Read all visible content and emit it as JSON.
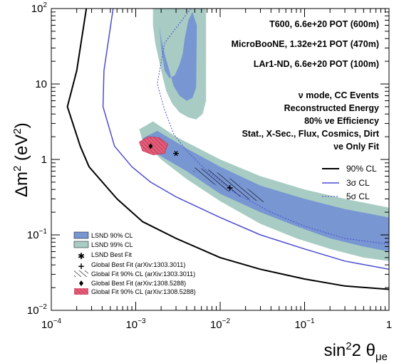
{
  "chart_data": {
    "type": "line",
    "xlabel": "sin²2 θμe",
    "ylabel": "Δm² (eV²)",
    "xscale": "log",
    "yscale": "log",
    "xlim": [
      0.0001,
      1
    ],
    "ylim": [
      0.01,
      100
    ],
    "x_ticks": [
      0.0001,
      0.001,
      0.01,
      0.1,
      1
    ],
    "y_ticks": [
      0.01,
      0.1,
      1,
      10,
      100
    ],
    "x_tick_labels": [
      {
        "base": "10",
        "exp": "−4"
      },
      {
        "base": "10",
        "exp": "−3"
      },
      {
        "base": "10",
        "exp": "−2"
      },
      {
        "base": "10",
        "exp": "−1"
      },
      {
        "base": "1",
        "exp": ""
      }
    ],
    "y_tick_labels": [
      {
        "base": "10",
        "exp": "−2"
      },
      {
        "base": "10",
        "exp": "−1"
      },
      {
        "base": "1",
        "exp": ""
      },
      {
        "base": "10",
        "exp": ""
      },
      {
        "base": "10",
        "exp": "2"
      }
    ],
    "info_lines": [
      "T600, 6.6e+20 POT (600m)",
      "MicroBooNE, 1.32e+21 POT (470m)",
      "LAr1-ND, 6.6e+20 POT (100m)"
    ],
    "mode_lines": [
      "ν mode, CC Events",
      "Reconstructed Energy",
      "80% νe Efficiency",
      "Stat., X-Sec., Flux, Cosmics, Dirt",
      "νe Only Fit"
    ],
    "series": [
      {
        "name": "90% CL",
        "color": "#000000",
        "style": "solid",
        "x": [
          0.00026,
          0.0002,
          0.000155,
          0.00022,
          0.00028,
          0.0006,
          0.0012,
          0.003,
          0.01,
          0.03,
          0.1,
          0.3,
          1.0
        ],
        "y": [
          100,
          15,
          5.0,
          1.5,
          0.8,
          0.3,
          0.15,
          0.09,
          0.05,
          0.035,
          0.026,
          0.021,
          0.019
        ]
      },
      {
        "name": "3σ CL",
        "color": "#4b4bd2",
        "style": "solid",
        "x": [
          0.00054,
          0.00042,
          0.00041,
          0.00056,
          0.0009,
          0.0015,
          0.003,
          0.01,
          0.03,
          0.1,
          0.3,
          1.0
        ],
        "y": [
          100,
          15,
          5.0,
          1.5,
          0.8,
          0.5,
          0.32,
          0.17,
          0.1,
          0.065,
          0.045,
          0.035
        ]
      },
      {
        "name": "5σ CL",
        "color": "#4b4bd2",
        "style": "dashed",
        "x": [
          0.0045,
          0.0022,
          0.0018,
          0.0022,
          0.0028,
          0.004,
          0.007,
          0.015,
          0.04,
          0.1,
          0.3,
          1.0
        ],
        "y": [
          100,
          35,
          10,
          4.5,
          2.2,
          1.3,
          0.7,
          0.36,
          0.2,
          0.13,
          0.09,
          0.075
        ]
      }
    ],
    "regions": [
      {
        "name": "LSND 99% CL",
        "color": "#a8ccc4",
        "x": [
          0.0011,
          0.0016,
          0.003,
          0.01,
          0.03,
          0.1,
          0.3,
          1.0,
          1.0,
          0.5,
          0.2,
          0.08,
          0.03,
          0.01,
          0.004,
          0.002,
          0.0012
        ],
        "y": [
          2.5,
          3.2,
          2.0,
          1.0,
          0.6,
          0.4,
          0.3,
          0.23,
          0.045,
          0.05,
          0.065,
          0.09,
          0.14,
          0.28,
          0.55,
          1.0,
          1.8
        ]
      },
      {
        "name": "LSND 90% CL",
        "color": "#7896d2",
        "x": [
          0.0012,
          0.0018,
          0.004,
          0.01,
          0.03,
          0.1,
          0.3,
          1.0,
          1.0,
          0.5,
          0.2,
          0.08,
          0.03,
          0.01,
          0.004,
          0.002,
          0.0013
        ],
        "y": [
          1.9,
          2.4,
          1.4,
          0.8,
          0.45,
          0.3,
          0.22,
          0.17,
          0.06,
          0.07,
          0.09,
          0.13,
          0.2,
          0.35,
          0.7,
          1.1,
          1.5
        ]
      },
      {
        "name": "LSND 99% CL (high Δm²)",
        "color": "#a8ccc4",
        "x": [
          0.0016,
          0.0016,
          0.0017,
          0.0019,
          0.0021,
          0.0023,
          0.0027,
          0.0033,
          0.0042,
          0.0052,
          0.0062,
          0.0068,
          0.0068,
          0.006,
          0.005,
          0.004,
          0.003,
          0.0024,
          0.002
        ],
        "y": [
          100,
          60,
          35,
          20,
          12,
          8,
          5.5,
          4.2,
          3.6,
          3.4,
          4.0,
          6,
          100,
          100,
          100,
          100,
          100,
          100,
          100
        ]
      },
      {
        "name": "LSND 90% CL (high Δm²)",
        "color": "#7896d2",
        "x": [
          0.0019,
          0.002,
          0.0022,
          0.0025,
          0.0028,
          0.0033,
          0.004,
          0.0047,
          0.0052,
          0.0053,
          0.0047,
          0.0042,
          0.0038,
          0.0036,
          0.0033,
          0.0029,
          0.0025,
          0.0022,
          0.002
        ],
        "y": [
          60,
          40,
          25,
          15,
          9.5,
          7,
          6,
          6.5,
          9,
          60,
          90,
          70,
          40,
          25,
          18,
          13,
          12,
          15,
          30
        ]
      },
      {
        "name": "Global Fit 90% CL (arXiv:1308.5288)",
        "color": "#e0607a",
        "x": [
          0.0011,
          0.0014,
          0.0019,
          0.0024,
          0.0022,
          0.0016,
          0.0012,
          0.00115
        ],
        "y": [
          1.7,
          2.0,
          1.95,
          1.6,
          1.2,
          1.15,
          1.3,
          1.5
        ]
      },
      {
        "name": "Global Fit 90% CL (arXiv:1303.3011)",
        "color": "#000000",
        "hatched": true,
        "x": [
          0.005,
          0.008,
          0.015,
          0.03,
          0.034,
          0.02,
          0.01,
          0.006,
          0.0048
        ],
        "y": [
          0.78,
          0.72,
          0.52,
          0.32,
          0.27,
          0.3,
          0.42,
          0.6,
          0.7
        ]
      }
    ],
    "markers": [
      {
        "name": "LSND Best Fit",
        "symbol": "asterisk",
        "x": 0.003,
        "y": 1.2
      },
      {
        "name": "Global Best Fit (arXiv:1303.3011)",
        "symbol": "plus",
        "x": 0.013,
        "y": 0.42
      },
      {
        "name": "Global Best Fit (arXiv:1308.5288)",
        "symbol": "diamond",
        "x": 0.0015,
        "y": 1.5
      }
    ],
    "legend_lines": [
      {
        "label": "90% CL",
        "color": "#000000",
        "dash": false
      },
      {
        "label": "3σ CL",
        "color": "#4b4bd2",
        "dash": false
      },
      {
        "label": "5σ CL",
        "color": "#4b4bd2",
        "dash": true
      }
    ],
    "legend_regions": [
      {
        "label": "LSND 90% CL",
        "kind": "box",
        "color": "#7896d2"
      },
      {
        "label": "LSND 99% CL",
        "kind": "box",
        "color": "#a8ccc4"
      },
      {
        "label": "LSND Best Fit",
        "kind": "asterisk",
        "color": "#000000"
      },
      {
        "label": "Global Best Fit (arXiv:1303.3011)",
        "kind": "plus",
        "color": "#000000"
      },
      {
        "label": "Global Fit 90% CL (arXiv:1303.3011)",
        "kind": "hatch",
        "color": "#000000"
      },
      {
        "label": "Global Best Fit (arXiv:1308.5288)",
        "kind": "diamond",
        "color": "#000000"
      },
      {
        "label": "Global Fit 90% CL (arXiv:1308.5288)",
        "kind": "redhatch",
        "color": "#e0607a"
      }
    ]
  }
}
